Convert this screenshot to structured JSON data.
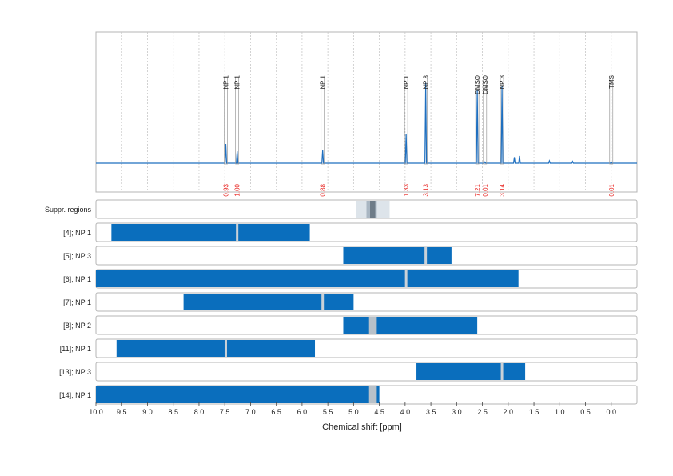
{
  "colors": {
    "spectrum": "#1f6fbf",
    "bar": "#0a6ebd",
    "integral_text": "#e8231f",
    "gridline": "#c8c8c8",
    "panel_border": "#b4b4b4",
    "suppr_light": "#dde4ea",
    "suppr_mid": "#a9b6c2",
    "suppr_dark": "#6e7c88",
    "bar_marker": "#c9d1d8",
    "bar_overlap": "#b8c1c9"
  },
  "chart_data": {
    "type": "nmr-spectrum-with-range-bars",
    "xlabel": "Chemical shift [ppm]",
    "xlim": [
      10.0,
      -0.5
    ],
    "x_reversed": true,
    "x_ticks": [
      "10.0",
      "9.5",
      "9.0",
      "8.5",
      "8.0",
      "7.5",
      "7.0",
      "6.5",
      "6.0",
      "5.5",
      "5.0",
      "4.5",
      "4.0",
      "3.5",
      "3.0",
      "2.5",
      "2.0",
      "1.5",
      "1.0",
      "0.5",
      "0.0"
    ],
    "grid": "vertical dotted",
    "peaks": [
      {
        "label": "NP 1",
        "ppm": 7.48,
        "intensity": 0.16,
        "integral": "0.93"
      },
      {
        "label": "NP 1",
        "ppm": 7.26,
        "intensity": 0.1,
        "integral": "1.00"
      },
      {
        "label": "NP 1",
        "ppm": 5.6,
        "intensity": 0.11,
        "integral": "0.88"
      },
      {
        "label": "NP 1",
        "ppm": 3.98,
        "intensity": 0.24,
        "integral": "1.33"
      },
      {
        "label": "NP 3",
        "ppm": 3.6,
        "intensity": 0.67,
        "integral": "3.13"
      },
      {
        "label": "DMSO",
        "ppm": 2.6,
        "intensity": 0.61,
        "integral": "7.21"
      },
      {
        "label": "DMSO",
        "ppm": 2.45,
        "intensity": 0.01,
        "integral": "0.01"
      },
      {
        "label": "NP 3",
        "ppm": 2.12,
        "intensity": 0.64,
        "integral": "3.14"
      },
      {
        "label": "TMS",
        "ppm": 0.0,
        "intensity": 0.01,
        "integral": "0.01"
      }
    ],
    "minor_peaks": [
      {
        "ppm": 1.88,
        "intensity": 0.05
      },
      {
        "ppm": 1.78,
        "intensity": 0.06
      },
      {
        "ppm": 1.2,
        "intensity": 0.02
      },
      {
        "ppm": 0.75,
        "intensity": 0.015
      }
    ],
    "rows": [
      {
        "label": "Suppr. regions",
        "type": "suppression",
        "bands": [
          {
            "from": 4.95,
            "to": 4.3,
            "level": "light"
          },
          {
            "from": 4.75,
            "to": 4.55,
            "level": "mid"
          },
          {
            "from": 4.68,
            "to": 4.58,
            "level": "dark"
          }
        ]
      },
      {
        "label": "[4]; NP 1",
        "range": [
          9.7,
          5.85
        ],
        "markers": [
          7.26
        ]
      },
      {
        "label": "[5]; NP 3",
        "range": [
          5.2,
          3.1
        ],
        "markers": [
          3.6
        ]
      },
      {
        "label": "[6]; NP 1",
        "range": [
          10.0,
          1.8
        ],
        "markers": [
          3.98
        ]
      },
      {
        "label": "[7]; NP 1",
        "range": [
          8.3,
          5.0
        ],
        "markers": [
          5.6
        ]
      },
      {
        "label": "[8]; NP 2",
        "range": [
          5.2,
          2.6
        ],
        "markers": [],
        "overlaps": [
          [
            4.7,
            4.55
          ]
        ]
      },
      {
        "label": "[11]; NP 1",
        "range": [
          9.6,
          5.75
        ],
        "markers": [
          7.48
        ]
      },
      {
        "label": "[13]; NP 3",
        "range": [
          3.78,
          1.67
        ],
        "markers": [
          2.12
        ]
      },
      {
        "label": "[14]; NP 1",
        "range": [
          10.0,
          4.5
        ],
        "markers": [],
        "overlaps": [
          [
            4.7,
            4.55
          ]
        ]
      }
    ]
  }
}
